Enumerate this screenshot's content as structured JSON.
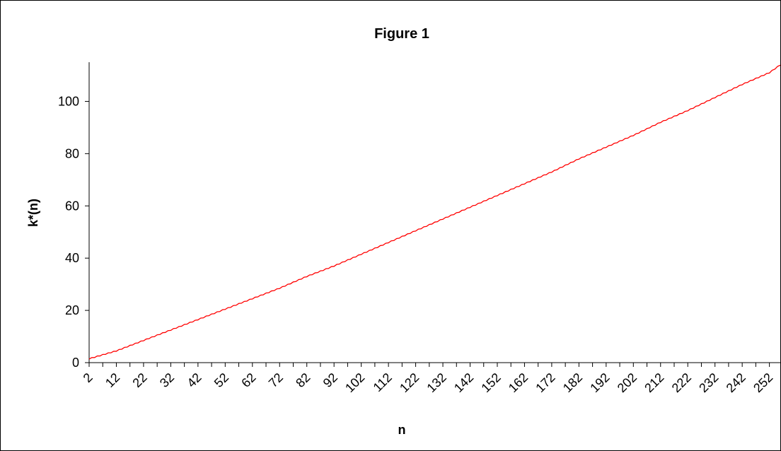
{
  "chart_data": {
    "type": "line",
    "title": "Figure 1",
    "xlabel": "n",
    "ylabel": "k*(n)",
    "xlim": [
      2,
      256
    ],
    "ylim": [
      0,
      115
    ],
    "y_ticks": [
      0,
      20,
      40,
      60,
      80,
      100
    ],
    "x_tick_labels": [
      "2",
      "12",
      "22",
      "32",
      "42",
      "52",
      "62",
      "72",
      "82",
      "92",
      "102",
      "112",
      "122",
      "132",
      "142",
      "152",
      "162",
      "172",
      "182",
      "192",
      "202",
      "212",
      "222",
      "232",
      "242",
      "252"
    ],
    "grid": false,
    "legend": "none",
    "colors": {
      "series": "#ff0000",
      "axes": "#000000",
      "background": "#ffffff"
    },
    "series": [
      {
        "x": [
          2,
          12,
          22,
          32,
          42,
          52,
          62,
          72,
          82,
          92,
          102,
          112,
          122,
          132,
          142,
          152,
          162,
          172,
          182,
          192,
          202,
          212,
          222,
          232,
          242,
          252,
          256
        ],
        "values": [
          1.5,
          4.5,
          8.5,
          12.5,
          16.5,
          20.5,
          24.5,
          28.5,
          33,
          37,
          41.5,
          46,
          50.5,
          55,
          59.5,
          64,
          68.5,
          73,
          78,
          82.5,
          87,
          92,
          96.5,
          101.5,
          106.5,
          111,
          114
        ]
      }
    ]
  }
}
